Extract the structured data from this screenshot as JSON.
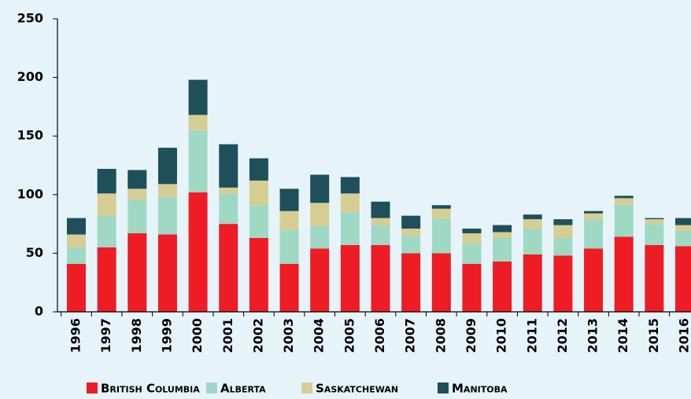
{
  "chart_data": {
    "type": "bar",
    "stacked": true,
    "categories": [
      "1996",
      "1997",
      "1998",
      "1999",
      "2000",
      "2001",
      "2002",
      "2003",
      "2004",
      "2005",
      "2006",
      "2007",
      "2008",
      "2009",
      "2010",
      "2011",
      "2012",
      "2013",
      "2014",
      "2015",
      "2016"
    ],
    "series": [
      {
        "name": "British Columbia",
        "color": "#ee1c25",
        "values": [
          41,
          55,
          67,
          66,
          102,
          75,
          63,
          41,
          54,
          57,
          57,
          50,
          50,
          41,
          43,
          49,
          48,
          54,
          64,
          57,
          56
        ]
      },
      {
        "name": "Alberta",
        "color": "#9fd9c4",
        "values": [
          14,
          27,
          29,
          32,
          53,
          26,
          28,
          29,
          19,
          28,
          17,
          15,
          30,
          17,
          20,
          22,
          15,
          25,
          28,
          18,
          13
        ]
      },
      {
        "name": "Saskatchewan",
        "color": "#d6cd92",
        "values": [
          11,
          19,
          9,
          11,
          13,
          5,
          21,
          16,
          20,
          16,
          6,
          6,
          8,
          9,
          5,
          8,
          11,
          5,
          5,
          4,
          5
        ]
      },
      {
        "name": "Manitoba",
        "color": "#1e4f5a",
        "values": [
          14,
          21,
          16,
          31,
          30,
          37,
          19,
          19,
          24,
          14,
          14,
          11,
          3,
          4,
          6,
          4,
          5,
          2,
          2,
          1,
          6
        ]
      }
    ],
    "ylim": [
      0,
      250
    ],
    "yticks": [
      0,
      50,
      100,
      150,
      200,
      250
    ],
    "legend": "bottom"
  }
}
